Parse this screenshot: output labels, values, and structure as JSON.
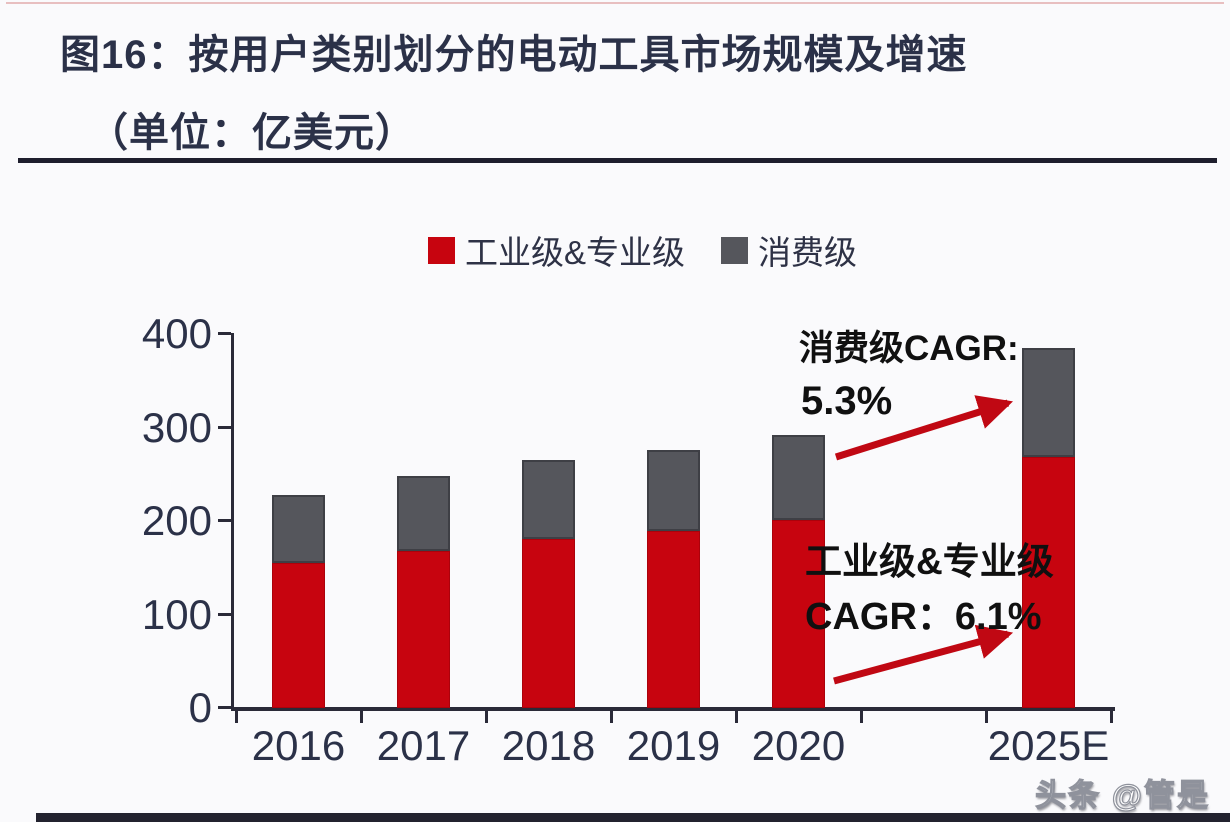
{
  "figure": {
    "title_line1": "图16：按用户类别划分的电动工具市场规模及增速",
    "title_line2": "（单位：亿美元）",
    "watermark": "头条 @管是"
  },
  "colors": {
    "industrial_red": "#c7040f",
    "consumer_gray": "#55565c",
    "arrow_red": "#c00813",
    "axis_dark": "#2a2a38",
    "title_navy": "#2b3148"
  },
  "legend": {
    "items": [
      {
        "label": "工业级&专业级",
        "color": "#c7040f"
      },
      {
        "label": "消费级",
        "color": "#55565c"
      }
    ]
  },
  "annotations": {
    "consumer_line1": "消费级CAGR:",
    "consumer_line2": "5.3%",
    "industrial_line1": "工业级&专业级",
    "industrial_line2": "CAGR：6.1%"
  },
  "chart_data": {
    "type": "bar",
    "stacked": true,
    "title": "按用户类别划分的电动工具市场规模及增速",
    "unit": "亿美元",
    "categories": [
      "2016",
      "2017",
      "2018",
      "2019",
      "2020",
      "2025E"
    ],
    "series": [
      {
        "name": "工业级&专业级",
        "color": "#c7040f",
        "values": [
          155,
          168,
          181,
          189,
          201,
          268
        ]
      },
      {
        "name": "消费级",
        "color": "#55565c",
        "values": [
          73,
          80,
          84,
          87,
          91,
          117
        ]
      }
    ],
    "totals": [
      228,
      248,
      265,
      276,
      292,
      385
    ],
    "ylim": [
      0,
      400
    ],
    "yticks": [
      0,
      100,
      200,
      300,
      400
    ],
    "legend_position": "top",
    "grid": false,
    "annotations": [
      {
        "text": "消费级CAGR: 5.3%",
        "applies_to": "消费级 2020→2025E"
      },
      {
        "text": "工业级&专业级 CAGR: 6.1%",
        "applies_to": "工业级&专业级 2020→2025E"
      }
    ]
  }
}
